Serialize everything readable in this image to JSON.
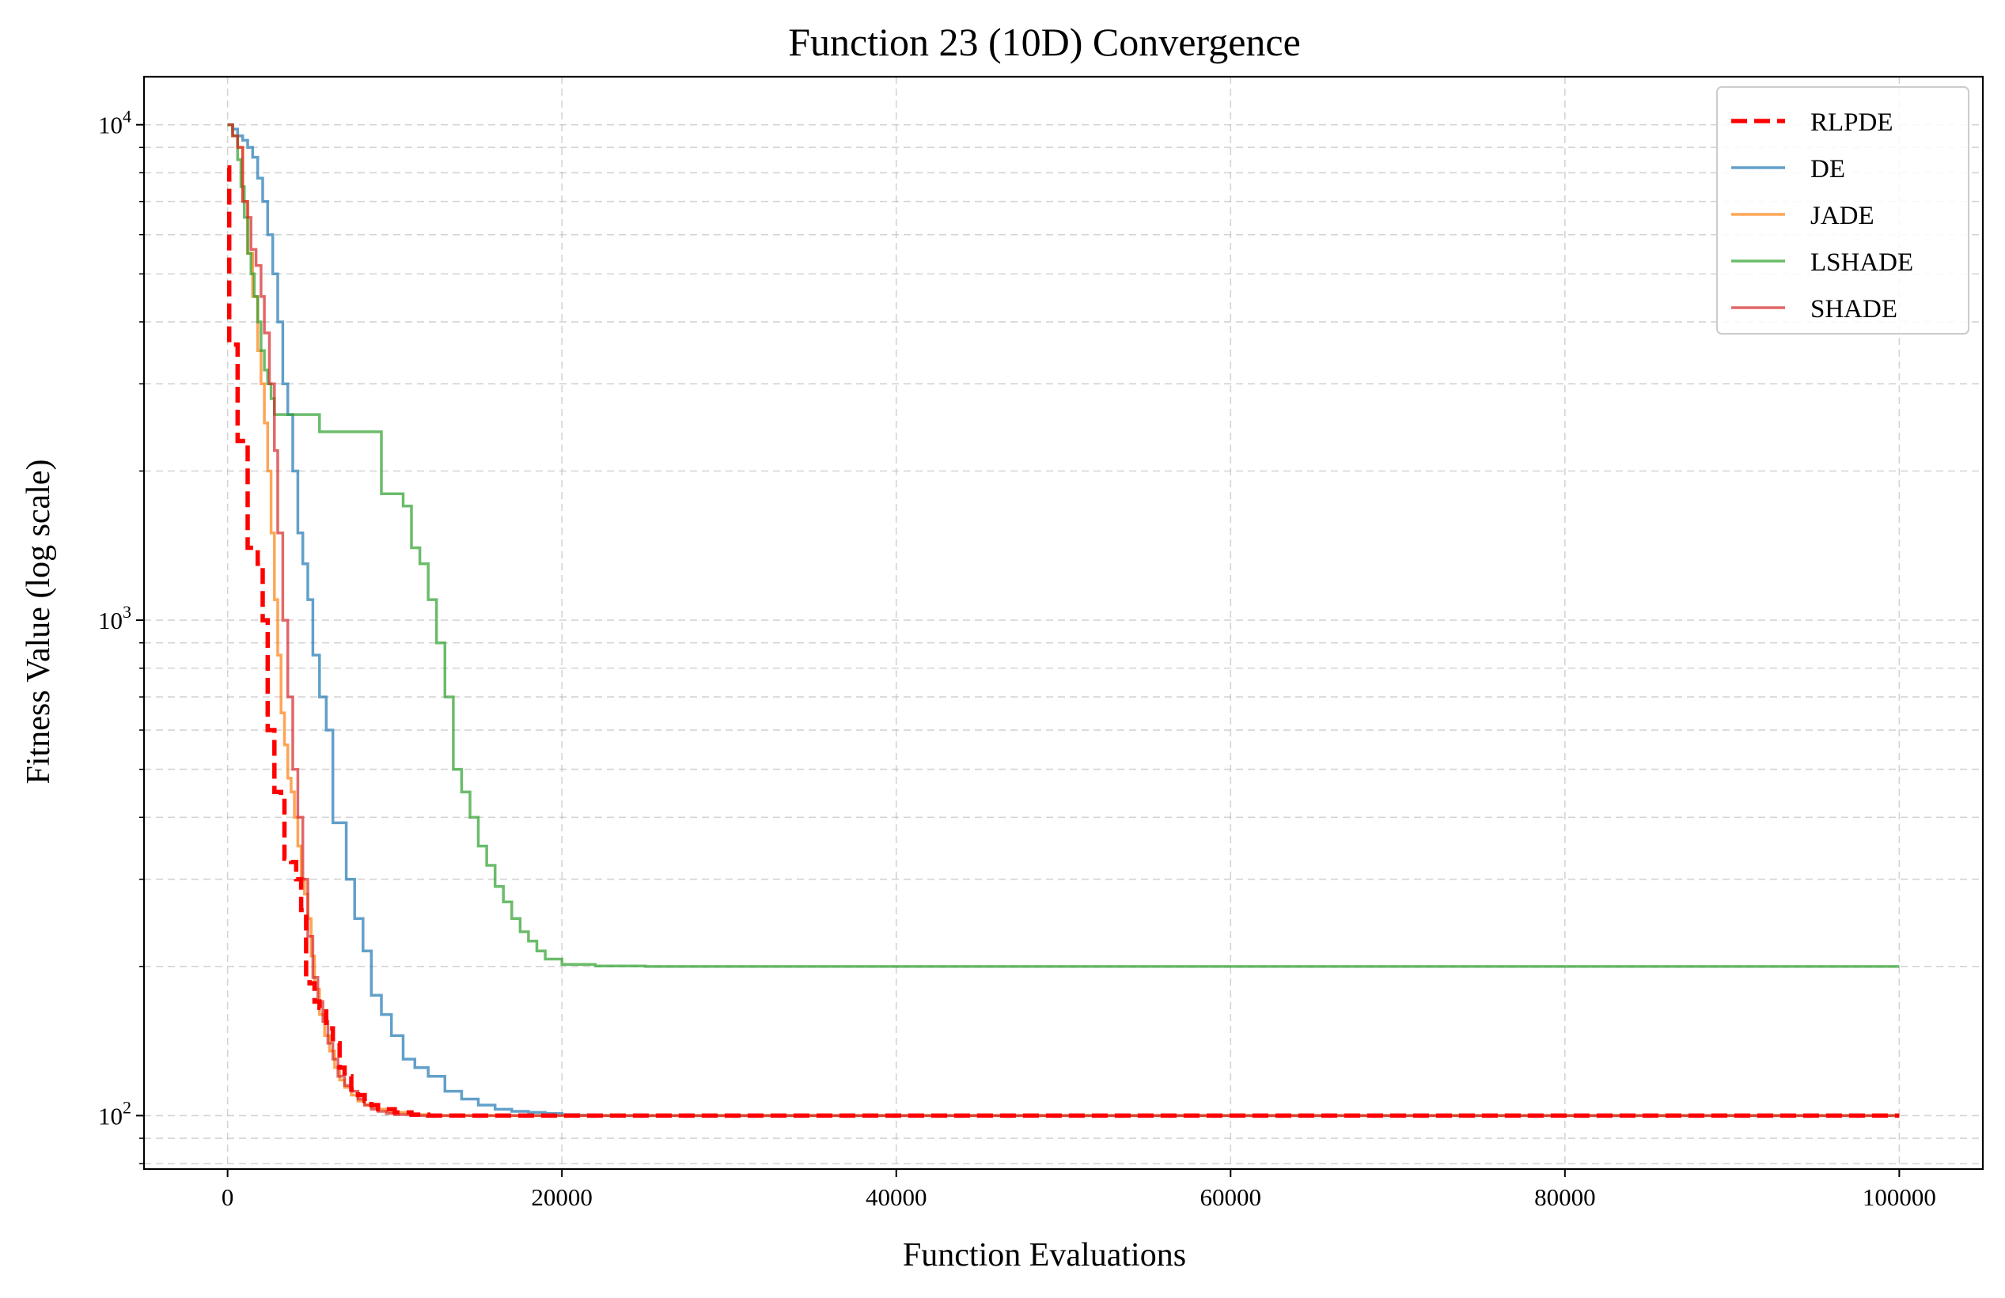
{
  "chart_data": {
    "type": "line",
    "title": "Function 23 (10D) Convergence",
    "xlabel": "Function Evaluations",
    "ylabel": "Fitness Value (log scale)",
    "xlim": [
      -5000,
      105000
    ],
    "ylim": [
      78,
      12500
    ],
    "yscale": "log",
    "grid": true,
    "legend_position": "top-right",
    "x_ticks": [
      {
        "value": 0,
        "label": "0"
      },
      {
        "value": 20000,
        "label": "20000"
      },
      {
        "value": 40000,
        "label": "40000"
      },
      {
        "value": 60000,
        "label": "60000"
      },
      {
        "value": 80000,
        "label": "80000"
      },
      {
        "value": 100000,
        "label": "100000"
      }
    ],
    "y_ticks": [
      {
        "value": 100,
        "base": "10",
        "exp": "2"
      },
      {
        "value": 1000,
        "base": "10",
        "exp": "3"
      },
      {
        "value": 10000,
        "base": "10",
        "exp": "4"
      }
    ],
    "series": [
      {
        "name": "RLPDE",
        "color": "#ff0000",
        "dashed": true,
        "width": 5.5,
        "x": [
          0,
          100,
          200,
          400,
          600,
          700,
          1000,
          1200,
          1500,
          1800,
          2100,
          2400,
          2600,
          2800,
          3000,
          3200,
          3400,
          3600,
          3800,
          4100,
          4400,
          4700,
          4900,
          5200,
          5500,
          5900,
          6300,
          6700,
          7000,
          7400,
          7800,
          8200,
          8600,
          9000,
          10000,
          11000,
          12000,
          15000,
          20000,
          30000,
          50000,
          100000
        ],
        "y": [
          8200,
          3600,
          3600,
          3600,
          2300,
          2300,
          2300,
          1400,
          1400,
          1300,
          1000,
          600,
          600,
          450,
          450,
          440,
          330,
          330,
          325,
          300,
          260,
          190,
          185,
          170,
          165,
          150,
          140,
          125,
          120,
          113,
          110,
          107,
          105,
          103,
          101.5,
          100.5,
          100,
          100,
          100,
          100,
          100,
          100
        ]
      },
      {
        "name": "DE",
        "color": "#1f77b4",
        "dashed": false,
        "width": 3.5,
        "alpha": 0.7,
        "x": [
          0,
          300,
          600,
          900,
          1200,
          1500,
          1800,
          2100,
          2400,
          2700,
          3000,
          3300,
          3600,
          3900,
          4200,
          4500,
          4800,
          5100,
          5500,
          5900,
          6300,
          6700,
          7100,
          7600,
          8100,
          8600,
          9200,
          9800,
          10500,
          11200,
          12000,
          13000,
          14000,
          15000,
          16000,
          17000,
          18000,
          19000,
          20000,
          21000,
          22000,
          23000,
          25000,
          30000,
          50000,
          100000
        ],
        "y": [
          10000,
          9800,
          9500,
          9300,
          9000,
          8600,
          7800,
          7000,
          6000,
          5000,
          4000,
          3000,
          2600,
          2000,
          1500,
          1300,
          1100,
          850,
          700,
          600,
          390,
          390,
          300,
          250,
          215,
          175,
          160,
          145,
          130,
          125,
          120,
          112,
          108,
          105,
          103,
          102,
          101.5,
          101,
          100.5,
          100.2,
          100,
          100,
          100,
          100,
          100,
          100
        ]
      },
      {
        "name": "JADE",
        "color": "#ff7f0e",
        "dashed": false,
        "width": 3.5,
        "alpha": 0.7,
        "x": [
          0,
          300,
          600,
          900,
          1200,
          1500,
          1800,
          2000,
          2200,
          2400,
          2600,
          2800,
          3000,
          3200,
          3400,
          3600,
          3800,
          4000,
          4200,
          4400,
          4600,
          4800,
          5000,
          5200,
          5500,
          5800,
          6100,
          6400,
          6700,
          7000,
          7400,
          7800,
          8200,
          8600,
          9000,
          9500,
          10000,
          11000,
          12000,
          15000,
          20000,
          100000
        ],
        "y": [
          10000,
          9500,
          9000,
          7000,
          5500,
          4500,
          3500,
          3000,
          2500,
          2000,
          1500,
          1100,
          850,
          650,
          560,
          480,
          450,
          400,
          350,
          300,
          280,
          250,
          210,
          180,
          160,
          145,
          135,
          125,
          118,
          114,
          110,
          107,
          105,
          104,
          103,
          102,
          101.5,
          100.5,
          100,
          100,
          100,
          100
        ]
      },
      {
        "name": "LSHADE",
        "color": "#2ca02c",
        "dashed": false,
        "width": 3.5,
        "alpha": 0.7,
        "x": [
          0,
          300,
          600,
          800,
          1000,
          1200,
          1400,
          1600,
          1800,
          2000,
          2200,
          2400,
          2600,
          2800,
          3000,
          5000,
          5500,
          7000,
          9000,
          9200,
          10500,
          11000,
          11500,
          12000,
          12500,
          13000,
          13500,
          14000,
          14500,
          15000,
          15500,
          16000,
          16500,
          17000,
          17500,
          18000,
          18500,
          19000,
          20000,
          22000,
          25000,
          30000,
          50000,
          100000
        ],
        "y": [
          10000,
          9500,
          8500,
          7500,
          6500,
          5500,
          5000,
          4500,
          4000,
          3500,
          3200,
          3000,
          2800,
          2600,
          2600,
          2600,
          2400,
          2400,
          2400,
          1800,
          1700,
          1400,
          1300,
          1100,
          900,
          700,
          500,
          450,
          400,
          350,
          320,
          290,
          270,
          250,
          235,
          225,
          215,
          207,
          202,
          200.5,
          200,
          200,
          200,
          200
        ]
      },
      {
        "name": "SHADE",
        "color": "#d62728",
        "dashed": false,
        "width": 3.5,
        "alpha": 0.7,
        "x": [
          0,
          300,
          600,
          900,
          1200,
          1400,
          1700,
          2000,
          2200,
          2500,
          2800,
          3000,
          3300,
          3600,
          3900,
          4200,
          4500,
          4800,
          5100,
          5400,
          5700,
          6000,
          6300,
          6600,
          7000,
          7400,
          7800,
          8200,
          8600,
          9000,
          9500,
          10000,
          11000,
          12000,
          15000,
          20000,
          100000
        ],
        "y": [
          10000,
          9500,
          9000,
          7000,
          6500,
          5600,
          5200,
          4500,
          3800,
          3000,
          2200,
          1500,
          1000,
          700,
          500,
          400,
          300,
          230,
          190,
          170,
          155,
          140,
          130,
          120,
          115,
          112,
          108,
          105,
          103,
          102,
          101,
          100.5,
          100,
          100,
          100,
          100,
          100
        ]
      }
    ]
  }
}
